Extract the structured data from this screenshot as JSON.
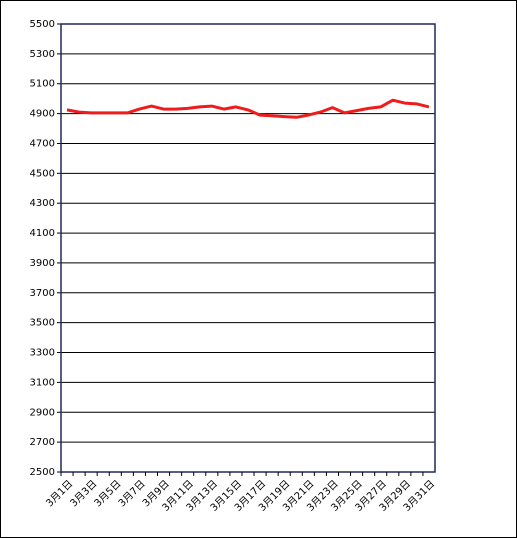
{
  "chart_data": {
    "type": "line",
    "categories": [
      "3月1日",
      null,
      "3月3日",
      null,
      "3月5日",
      null,
      "3月7日",
      null,
      "3月9日",
      null,
      "3月11日",
      null,
      "3月13日",
      null,
      "3月15日",
      null,
      "3月17日",
      null,
      "3月19日",
      null,
      "3月21日",
      null,
      "3月23日",
      null,
      "3月25日",
      null,
      "3月27日",
      null,
      "3月29日",
      null,
      "3月31日"
    ],
    "series": [
      {
        "color": "#ee1c1c",
        "values": [
          4925,
          4910,
          4905,
          4905,
          4905,
          4905,
          4930,
          4950,
          4930,
          4930,
          4935,
          4945,
          4950,
          4930,
          4945,
          4925,
          4890,
          4885,
          4880,
          4875,
          4890,
          4910,
          4940,
          4905,
          4920,
          4935,
          4945,
          4990,
          4970,
          4965,
          4945
        ]
      }
    ],
    "ylim": [
      2500,
      5500
    ],
    "yticks": [
      2500,
      2700,
      2900,
      3100,
      3300,
      3500,
      3700,
      3900,
      4100,
      4300,
      4500,
      4700,
      4900,
      5100,
      5300,
      5500
    ],
    "grid": true
  }
}
